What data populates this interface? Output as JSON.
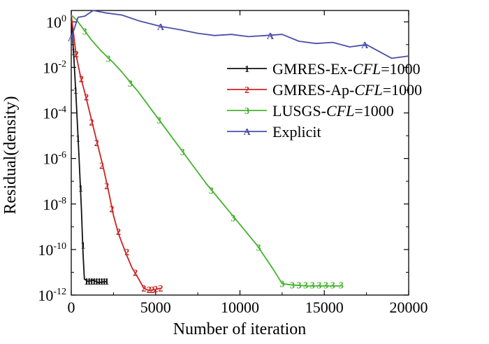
{
  "chart_data": {
    "type": "line",
    "title": "",
    "xlabel": "Number of iteration",
    "ylabel": "Residual(density)",
    "xlim": [
      0,
      20000
    ],
    "ylim_log10": [
      -12,
      0.5
    ],
    "x_ticks": [
      {
        "value": 0,
        "label": "0"
      },
      {
        "value": 5000,
        "label": "5000"
      },
      {
        "value": 10000,
        "label": "10000"
      },
      {
        "value": 15000,
        "label": "15000"
      },
      {
        "value": 20000,
        "label": "20000"
      }
    ],
    "y_ticks": [
      {
        "exp": 0,
        "base": "10",
        "sup": "0"
      },
      {
        "exp": -2,
        "base": "10",
        "sup": "-2"
      },
      {
        "exp": -4,
        "base": "10",
        "sup": "-4"
      },
      {
        "exp": -6,
        "base": "10",
        "sup": "-6"
      },
      {
        "exp": -8,
        "base": "10",
        "sup": "-8"
      },
      {
        "exp": -10,
        "base": "10",
        "sup": "-10"
      },
      {
        "exp": -12,
        "base": "10",
        "sup": "-12"
      }
    ],
    "series": [
      {
        "name": "GMRES-Ex-CFL=1000",
        "legend_prefix": "GMRES-Ex-",
        "legend_italic": "CFL",
        "legend_suffix": "=1000",
        "color": "#111111",
        "marker": "1",
        "points": [
          [
            0,
            0.2
          ],
          [
            150,
            -1.5
          ],
          [
            300,
            -3.5
          ],
          [
            450,
            -5.8
          ],
          [
            600,
            -8.2
          ],
          [
            700,
            -10.2
          ],
          [
            780,
            -11.3
          ],
          [
            1000,
            -11.4
          ],
          [
            1300,
            -11.35
          ],
          [
            1600,
            -11.45
          ],
          [
            2100,
            -11.4
          ]
        ],
        "marker_points": [
          [
            130,
            -1.3
          ],
          [
            260,
            -3.0
          ],
          [
            400,
            -5.1
          ],
          [
            560,
            -7.3
          ],
          [
            700,
            -9.8
          ],
          [
            900,
            -11.38
          ],
          [
            1050,
            -11.38
          ],
          [
            1200,
            -11.38
          ],
          [
            1350,
            -11.38
          ],
          [
            1500,
            -11.38
          ],
          [
            1650,
            -11.38
          ],
          [
            1800,
            -11.38
          ],
          [
            1950,
            -11.38
          ],
          [
            2100,
            -11.38
          ]
        ]
      },
      {
        "name": "GMRES-Ap-CFL=1000",
        "legend_prefix": "GMRES-Ap-",
        "legend_italic": "CFL",
        "legend_suffix": "=1000",
        "color": "#cc2222",
        "marker": "2",
        "points": [
          [
            0,
            0.3
          ],
          [
            300,
            -1.5
          ],
          [
            550,
            -2.4
          ],
          [
            800,
            -3.1
          ],
          [
            1000,
            -3.7
          ],
          [
            1300,
            -4.6
          ],
          [
            1600,
            -5.5
          ],
          [
            1900,
            -6.4
          ],
          [
            2200,
            -7.4
          ],
          [
            2500,
            -8.5
          ],
          [
            2800,
            -9.3
          ],
          [
            3200,
            -10.1
          ],
          [
            3600,
            -10.8
          ],
          [
            4000,
            -11.3
          ],
          [
            4300,
            -11.7
          ],
          [
            4600,
            -11.8
          ],
          [
            5000,
            -11.75
          ],
          [
            5300,
            -11.7
          ]
        ],
        "marker_points": [
          [
            300,
            -1.4
          ],
          [
            600,
            -2.5
          ],
          [
            900,
            -3.3
          ],
          [
            1200,
            -4.4
          ],
          [
            1500,
            -5.3
          ],
          [
            1800,
            -6.3
          ],
          [
            2100,
            -7.2
          ],
          [
            2400,
            -8.2
          ],
          [
            2800,
            -9.2
          ],
          [
            3300,
            -10.1
          ],
          [
            3800,
            -11.0
          ],
          [
            4300,
            -11.7
          ],
          [
            4600,
            -11.75
          ],
          [
            4800,
            -11.75
          ],
          [
            5000,
            -11.72
          ],
          [
            5300,
            -11.7
          ]
        ]
      },
      {
        "name": "LUSGS-CFL=1000",
        "legend_prefix": "LUSGS-",
        "legend_italic": "CFL",
        "legend_suffix": "=1000",
        "color": "#44b22c",
        "marker": "3",
        "points": [
          [
            0,
            0.3
          ],
          [
            300,
            0.1
          ],
          [
            700,
            -0.3
          ],
          [
            1200,
            -0.8
          ],
          [
            1800,
            -1.3
          ],
          [
            2500,
            -1.8
          ],
          [
            3000,
            -2.2
          ],
          [
            4000,
            -3.1
          ],
          [
            5000,
            -4.1
          ],
          [
            6000,
            -5.1
          ],
          [
            7000,
            -6.1
          ],
          [
            8000,
            -7.1
          ],
          [
            9000,
            -8.0
          ],
          [
            10000,
            -8.9
          ],
          [
            11000,
            -9.8
          ],
          [
            12000,
            -10.9
          ],
          [
            12500,
            -11.5
          ],
          [
            13000,
            -11.55
          ],
          [
            14000,
            -11.6
          ],
          [
            15000,
            -11.6
          ],
          [
            16000,
            -11.6
          ]
        ],
        "marker_points": [
          [
            800,
            -0.4
          ],
          [
            2200,
            -1.6
          ],
          [
            3500,
            -2.7
          ],
          [
            5200,
            -4.3
          ],
          [
            6600,
            -5.7
          ],
          [
            8300,
            -7.4
          ],
          [
            9600,
            -8.6
          ],
          [
            11100,
            -9.9
          ],
          [
            12500,
            -11.5
          ],
          [
            13100,
            -11.55
          ],
          [
            13500,
            -11.55
          ],
          [
            13900,
            -11.55
          ],
          [
            14300,
            -11.55
          ],
          [
            14700,
            -11.55
          ],
          [
            15100,
            -11.55
          ],
          [
            15500,
            -11.55
          ],
          [
            16000,
            -11.55
          ]
        ]
      },
      {
        "name": "Explicit",
        "legend_prefix": "Explicit",
        "legend_italic": "",
        "legend_suffix": "",
        "color": "#4a4fa8",
        "marker": "A",
        "points": [
          [
            0,
            -0.7
          ],
          [
            400,
            0.2
          ],
          [
            800,
            0.25
          ],
          [
            1300,
            0.5
          ],
          [
            2000,
            0.4
          ],
          [
            3000,
            0.3
          ],
          [
            4000,
            0.05
          ],
          [
            5300,
            -0.2
          ],
          [
            6500,
            -0.35
          ],
          [
            7500,
            -0.5
          ],
          [
            8500,
            -0.6
          ],
          [
            9500,
            -0.55
          ],
          [
            10500,
            -0.65
          ],
          [
            11500,
            -0.6
          ],
          [
            12500,
            -0.55
          ],
          [
            13500,
            -0.85
          ],
          [
            14500,
            -0.95
          ],
          [
            15500,
            -0.9
          ],
          [
            16500,
            -1.1
          ],
          [
            17500,
            -1.0
          ],
          [
            18500,
            -1.4
          ],
          [
            19000,
            -1.6
          ],
          [
            20000,
            -1.5
          ]
        ],
        "marker_points": [
          [
            0,
            -0.7
          ],
          [
            5300,
            -0.2
          ],
          [
            11800,
            -0.6
          ],
          [
            17400,
            -1.0
          ]
        ]
      }
    ],
    "legend_position": "top-right"
  }
}
